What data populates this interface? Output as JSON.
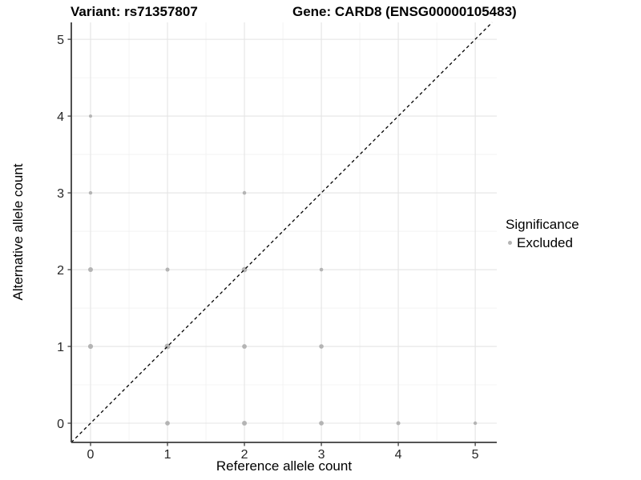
{
  "header": {
    "variant_title": "Variant: rs71357807",
    "gene_title": "Gene: CARD8 (ENSG00000105483)"
  },
  "axes": {
    "x_label": "Reference allele count",
    "y_label": "Alternative allele count",
    "x_tick_labels": [
      "0",
      "1",
      "2",
      "3",
      "4",
      "5"
    ],
    "y_tick_labels": [
      "0",
      "1",
      "2",
      "3",
      "4",
      "5"
    ]
  },
  "legend": {
    "title": "Significance",
    "items": [
      {
        "label": "Excluded",
        "color": "#b4b4b4"
      }
    ]
  },
  "colors": {
    "point": "#b4b4b4",
    "grid_major": "#e4e4e4",
    "grid_minor": "#f1f1f1",
    "axis_line": "#3c3c3c",
    "tick_text": "#262626",
    "dashed_line": "#000000",
    "background": "#ffffff"
  },
  "chart_data": {
    "type": "scatter",
    "title": "Variant: rs71357807   Gene: CARD8 (ENSG00000105483)",
    "xlabel": "Reference allele count",
    "ylabel": "Alternative allele count",
    "xlim": [
      -0.25,
      5.28
    ],
    "ylim": [
      -0.25,
      5.22
    ],
    "x_ticks": [
      0,
      1,
      2,
      3,
      4,
      5
    ],
    "y_ticks": [
      0,
      1,
      2,
      3,
      4,
      5
    ],
    "minor_ticks": [
      0.5,
      1.5,
      2.5,
      3.5,
      4.5
    ],
    "grid": "major+minor",
    "legend_position": "right",
    "reference_line": {
      "type": "identity y=x",
      "style": "dashed",
      "color": "#000000"
    },
    "series": [
      {
        "name": "Excluded",
        "color": "#b4b4b4",
        "points": [
          {
            "x": 0,
            "y": 1,
            "r": 3.1
          },
          {
            "x": 0,
            "y": 2,
            "r": 3.0
          },
          {
            "x": 0,
            "y": 3,
            "r": 2.2
          },
          {
            "x": 0,
            "y": 4,
            "r": 2.0
          },
          {
            "x": 1,
            "y": 0,
            "r": 2.9
          },
          {
            "x": 1,
            "y": 1,
            "r": 3.5
          },
          {
            "x": 1,
            "y": 2,
            "r": 2.5
          },
          {
            "x": 2,
            "y": 0,
            "r": 3.0
          },
          {
            "x": 2,
            "y": 1,
            "r": 2.9
          },
          {
            "x": 2,
            "y": 2,
            "r": 3.3
          },
          {
            "x": 2,
            "y": 3,
            "r": 2.3
          },
          {
            "x": 3,
            "y": 0,
            "r": 2.9
          },
          {
            "x": 3,
            "y": 1,
            "r": 2.8
          },
          {
            "x": 3,
            "y": 2,
            "r": 2.3
          },
          {
            "x": 4,
            "y": 0,
            "r": 2.5
          },
          {
            "x": 5,
            "y": 0,
            "r": 2.2
          }
        ]
      }
    ]
  }
}
